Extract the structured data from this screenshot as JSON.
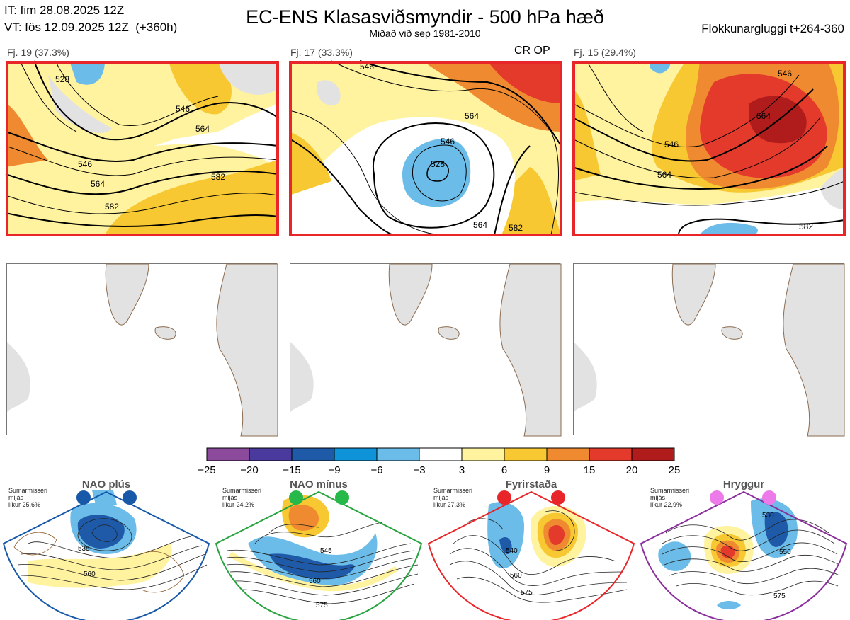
{
  "header": {
    "it": "IT: fim 28.08.2025 12Z",
    "vt": "VT: fös 12.09.2025 12Z  (+360h)",
    "title": "EC-ENS Klasasviðsmyndir - 500 hPa hæð",
    "subtitle": "Miðað við sep 1981-2010",
    "window": "Flokkunargluggi t+264-360"
  },
  "panels": [
    {
      "label": "Fj. 19 (37.3%)",
      "contours": [
        "546",
        "564",
        "582",
        "528",
        "546",
        "564",
        "582"
      ]
    },
    {
      "label": "Fj. 17 (33.3%)",
      "extra": "CR OP",
      "contours": [
        "528",
        "546",
        "564",
        "546",
        "564",
        "582"
      ]
    },
    {
      "label": "Fj. 15 (29.4%)",
      "contours": [
        "546",
        "564",
        "546",
        "564",
        "582"
      ]
    }
  ],
  "chart_data": {
    "type": "heatmap",
    "title": "EC-ENS Klasasviðsmyndir - 500 hPa hæð",
    "colorbar": {
      "ticks": [
        "−25",
        "−20",
        "−15",
        "−9",
        "−6",
        "−3",
        "3",
        "6",
        "9",
        "15",
        "20",
        "25"
      ],
      "colors": [
        "#8c4a9c",
        "#4b3a9e",
        "#1e5aa8",
        "#0e93d8",
        "#6bbce8",
        "#ffffff",
        "#fff3a0",
        "#f7c832",
        "#f08a30",
        "#e33a2c",
        "#b01c1c"
      ]
    },
    "clusters": [
      {
        "name": "Fj. 19",
        "percent": 37.3
      },
      {
        "name": "Fj. 17",
        "percent": 33.3
      },
      {
        "name": "Fj. 15",
        "percent": 29.4
      }
    ],
    "regimes": [
      {
        "name": "NAO plús",
        "probability": "25,6%",
        "isolines": [
          "535",
          "560"
        ]
      },
      {
        "name": "NAO mínus",
        "probability": "24,2%",
        "isolines": [
          "545",
          "560",
          "575"
        ]
      },
      {
        "name": "Fyrirstaða",
        "probability": "27,3%",
        "isolines": [
          "540",
          "560",
          "575"
        ]
      },
      {
        "name": "Hryggur",
        "probability": "22,9%",
        "isolines": [
          "530",
          "550",
          "575"
        ]
      }
    ]
  },
  "regimes": [
    {
      "name": "NAO plús",
      "line1": "Sumarmisseri",
      "line2": "mijás",
      "line3": "líkur 25,6%",
      "color": "#1759a8",
      "dot": "#1759a8"
    },
    {
      "name": "NAO mínus",
      "line1": "Sumarmisseri",
      "line2": "mijás",
      "line3": "líkur 24,2%",
      "color": "#27a33f",
      "dot": "#27b84a"
    },
    {
      "name": "Fyrirstaða",
      "line1": "Sumarmisseri",
      "line2": "mijás",
      "line3": "líkur 27,3%",
      "color": "#e8262a",
      "dot": "#e8262a"
    },
    {
      "name": "Hryggur",
      "line1": "Sumarmisseri",
      "line2": "mijás",
      "line3": "líkur 22,9%",
      "color": "#8a2e9c",
      "dot": "#ec7ae8"
    }
  ]
}
